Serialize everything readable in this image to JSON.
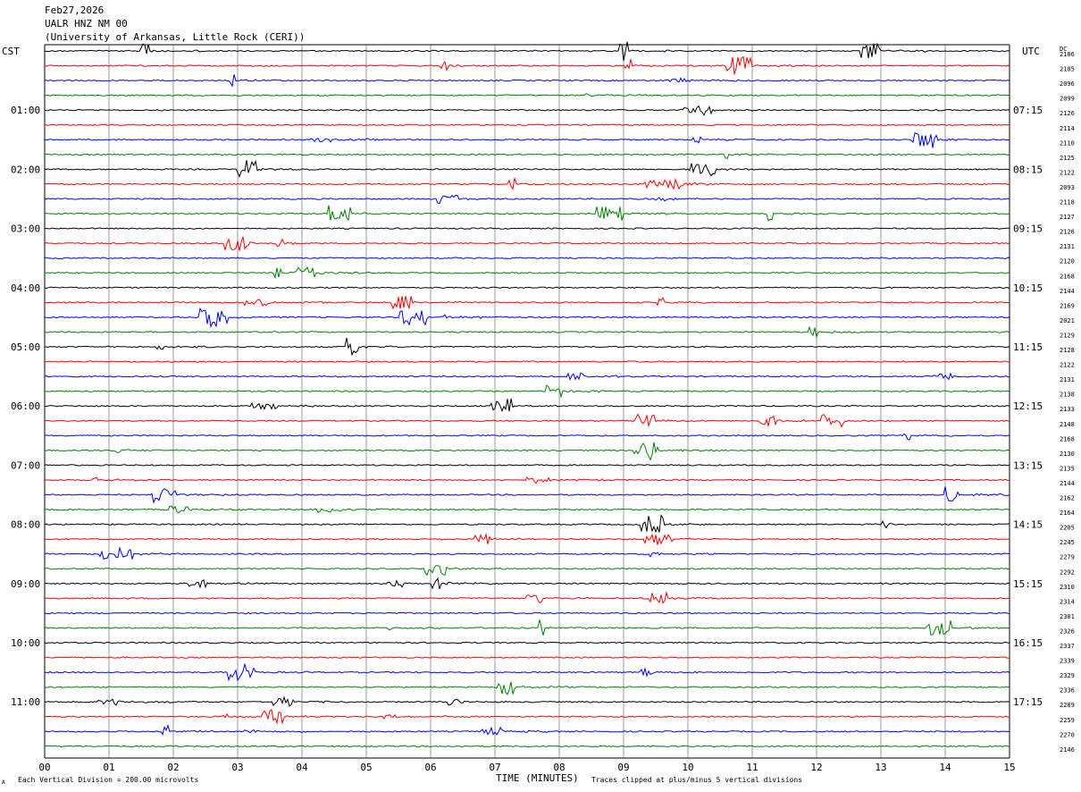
{
  "header": {
    "date": "Feb27,2026",
    "station": "UALR HNZ NM 00",
    "institution": "(University of Arkansas, Little Rock (CERI))"
  },
  "left_zone_label": "CST",
  "right_zone_label": "UTC",
  "dc_label": "DC",
  "footer": {
    "scale_note": "Each Vertical Division =  200.00 microvolts",
    "xaxis_title": "TIME (MINUTES)",
    "clip_note": "Traces clipped at plus/minus 5 vertical divisions",
    "corner_mark": "A"
  },
  "chart_data": {
    "type": "line",
    "title": "",
    "xlabel": "TIME (MINUTES)",
    "xlim": [
      0,
      15
    ],
    "x_ticks": [
      "00",
      "01",
      "02",
      "03",
      "04",
      "05",
      "06",
      "07",
      "08",
      "09",
      "10",
      "11",
      "12",
      "13",
      "14",
      "15"
    ],
    "row_count": 48,
    "row_colors": [
      "#000000",
      "#ff0000",
      "#0000ff",
      "#008000"
    ],
    "cst_hour_labels": [
      "01:00",
      "02:00",
      "03:00",
      "04:00",
      "05:00",
      "06:00",
      "07:00",
      "08:00",
      "09:00",
      "10:00",
      "11:00"
    ],
    "utc_hour_labels": [
      "07:15",
      "08:15",
      "09:15",
      "10:15",
      "11:15",
      "12:15",
      "13:15",
      "14:15",
      "15:15",
      "16:15",
      "17:15"
    ],
    "hour_label_first_row": 4,
    "dc_offsets": [
      "2106",
      "2105",
      "2096",
      "2099",
      "2126",
      "2114",
      "2110",
      "2125",
      "2122",
      "2093",
      "2118",
      "2127",
      "2126",
      "2131",
      "2120",
      "2168",
      "2144",
      "2169",
      "2021",
      "2129",
      "2128",
      "2122",
      "2131",
      "2138",
      "2133",
      "2148",
      "2168",
      "2130",
      "2135",
      "2144",
      "2162",
      "2164",
      "2205",
      "2245",
      "2279",
      "2292",
      "2310",
      "2314",
      "2301",
      "2326",
      "2337",
      "2339",
      "2329",
      "2336",
      "2289",
      "2259",
      "2270",
      "2146"
    ]
  }
}
